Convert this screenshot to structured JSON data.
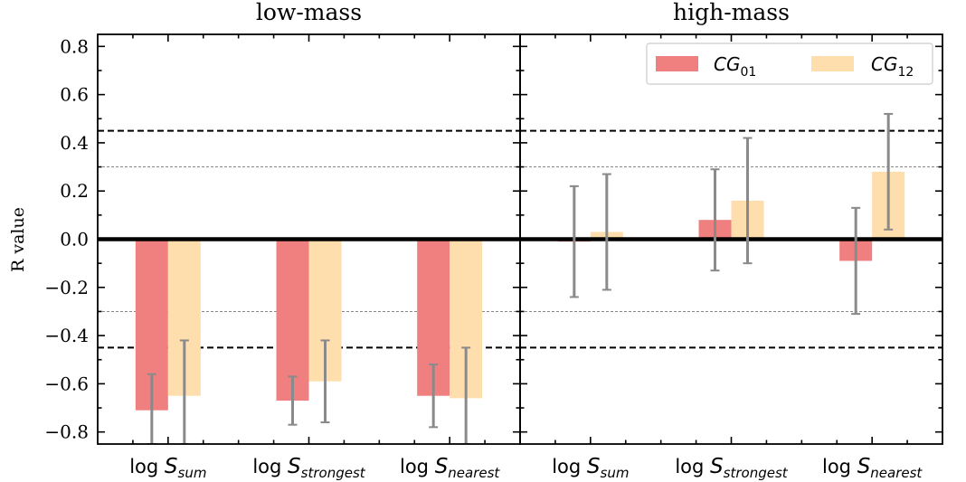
{
  "colors": {
    "cg01": "#f08080",
    "cg12": "#ffdead",
    "errorbar": "#8a8a8a",
    "zero_line": "#000000",
    "sig_dashed": "#000000",
    "sig_dotted": "#888888"
  },
  "legend": {
    "placement": "top-right of high-mass panel",
    "entries": [
      {
        "base": "CG",
        "sub": "01",
        "color_key": "cg01"
      },
      {
        "base": "CG",
        "sub": "12",
        "color_key": "cg12"
      }
    ]
  },
  "xtick_labels": [
    {
      "prefix": "log ",
      "base": "S",
      "sub": "sum"
    },
    {
      "prefix": "log ",
      "base": "S",
      "sub": "strongest"
    },
    {
      "prefix": "log ",
      "base": "S",
      "sub": "nearest"
    }
  ],
  "chart_data": [
    {
      "type": "bar",
      "title": "low-mass",
      "ylabel": "R value",
      "ylim": [
        -0.85,
        0.85
      ],
      "yticks": [
        0.8,
        0.6,
        0.4,
        0.2,
        0.0,
        -0.2,
        -0.4,
        -0.6,
        -0.8
      ],
      "ytick_labels": [
        "0.8",
        "0.6",
        "0.4",
        "0.2",
        "0.0",
        "−0.2",
        "−0.4",
        "−0.6",
        "−0.8"
      ],
      "categories": [
        "log S_sum",
        "log S_strongest",
        "log S_nearest"
      ],
      "reference_lines": {
        "dashed": [
          0.45,
          -0.45
        ],
        "dotted": [
          0.3,
          -0.3
        ],
        "solid": [
          0.0
        ]
      },
      "series": [
        {
          "name": "CG01",
          "values": [
            -0.71,
            -0.67,
            -0.65
          ],
          "err_low": [
            -0.85,
            -0.77,
            -0.78
          ],
          "err_high": [
            -0.56,
            -0.57,
            -0.52
          ]
        },
        {
          "name": "CG12",
          "values": [
            -0.65,
            -0.59,
            -0.66
          ],
          "err_low": [
            -0.85,
            -0.76,
            -0.85
          ],
          "err_high": [
            -0.42,
            -0.42,
            -0.45
          ]
        }
      ]
    },
    {
      "type": "bar",
      "title": "high-mass",
      "ylabel": "",
      "ylim": [
        -0.85,
        0.85
      ],
      "categories": [
        "log S_sum",
        "log S_strongest",
        "log S_nearest"
      ],
      "reference_lines": {
        "dashed": [
          0.45,
          -0.45
        ],
        "dotted": [
          0.3,
          -0.3
        ],
        "solid": [
          0.0
        ]
      },
      "series": [
        {
          "name": "CG01",
          "values": [
            -0.01,
            0.08,
            -0.09
          ],
          "err_low": [
            -0.24,
            -0.13,
            -0.31
          ],
          "err_high": [
            0.22,
            0.29,
            0.13
          ]
        },
        {
          "name": "CG12",
          "values": [
            0.03,
            0.16,
            0.28
          ],
          "err_low": [
            -0.21,
            -0.1,
            0.04
          ],
          "err_high": [
            0.27,
            0.42,
            0.52
          ]
        }
      ]
    }
  ]
}
